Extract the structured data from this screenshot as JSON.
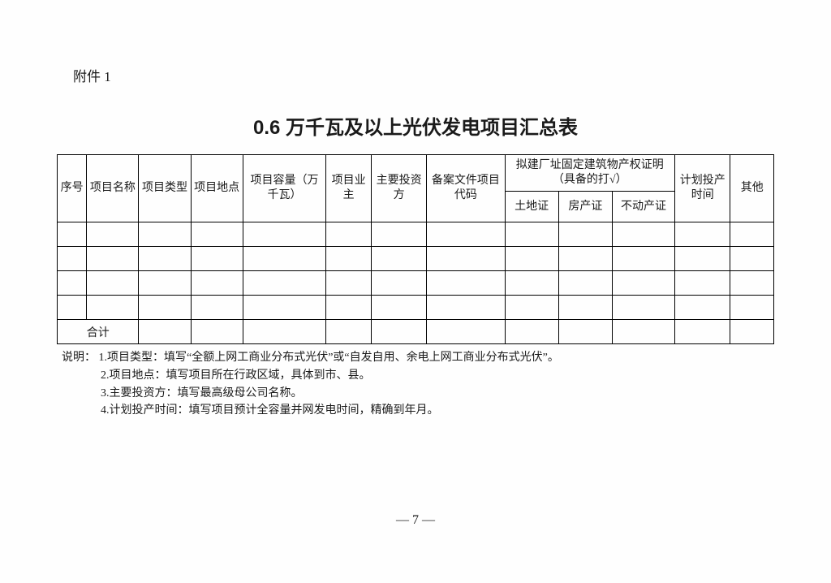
{
  "attachment_label": "附件 1",
  "title": "0.6 万千瓦及以上光伏发电项目汇总表",
  "table": {
    "columns": {
      "seq": "序号",
      "project_name": "项目名称",
      "project_type": "项目类型",
      "project_location": "项目地点",
      "project_capacity": "项目容量（万千瓦）",
      "project_owner": "项目业主",
      "main_investor": "主要投资方",
      "filing_code": "备案文件项目代码",
      "property_group": "拟建厂址固定建筑物产权证明（具备的打√）",
      "land_cert": "土地证",
      "house_cert": "房产证",
      "real_estate_cert": "不动产证",
      "planned_prod_time": "计划投产时间",
      "other": "其他"
    },
    "footer": {
      "total_label": "合计"
    },
    "widths": {
      "seq": 34,
      "project_name": 60,
      "project_type": 60,
      "project_location": 60,
      "project_capacity": 96,
      "project_owner": 52,
      "main_investor": 64,
      "filing_code": 90,
      "land_cert": 62,
      "house_cert": 62,
      "real_estate_cert": 72,
      "planned_prod_time": 64,
      "other": 50
    }
  },
  "notes": {
    "label": "说明：",
    "items": [
      "1.项目类型：填写“全额上网工商业分布式光伏”或“自发自用、余电上网工商业分布式光伏”。",
      "2.项目地点：填写项目所在行政区域，具体到市、县。",
      "3.主要投资方：填写最高级母公司名称。",
      "4.计划投产时间：填写项目预计全容量并网发电时间，精确到年月。"
    ]
  },
  "page_number": "— 7 —"
}
